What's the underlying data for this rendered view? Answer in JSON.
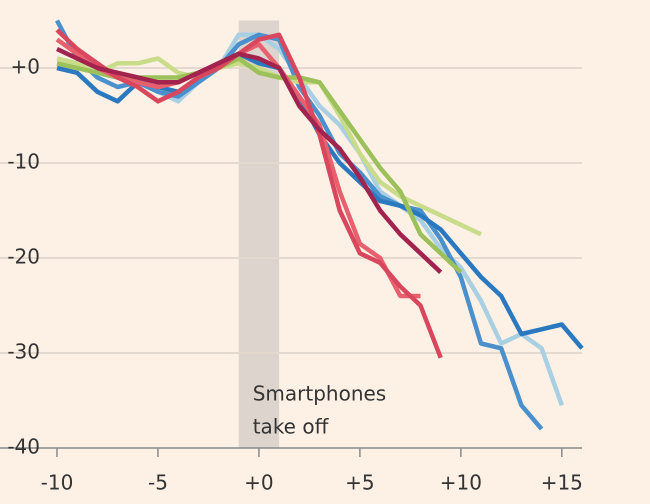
{
  "chart_data": {
    "type": "line",
    "x": [
      -10,
      -9,
      -8,
      -7,
      -6,
      -5,
      -4,
      -3,
      -2,
      -1,
      0,
      1,
      2,
      3,
      4,
      5,
      6,
      7,
      8,
      9,
      10,
      11,
      12,
      13,
      14,
      15,
      16
    ],
    "xlim": [
      -10,
      16
    ],
    "xticks": [
      -10,
      -5,
      {
        "value": 0,
        "label": "+0"
      },
      {
        "value": 5,
        "label": "+5"
      },
      {
        "value": 10,
        "label": "+10"
      },
      {
        "value": 15,
        "label": "+15"
      }
    ],
    "ylim": [
      -40,
      5
    ],
    "yticks": [
      -40,
      -30,
      -20,
      -10,
      {
        "value": 0,
        "label": "+0"
      }
    ],
    "grid": true,
    "band": {
      "from": -1,
      "to": 1,
      "color": "#ddd5cd",
      "label": [
        "Smartphones",
        "take off"
      ]
    },
    "series": [
      {
        "color": "#a9cfe2",
        "values": [
          2,
          1,
          -0.5,
          -1,
          -1,
          -2.5,
          -3.5,
          -1.5,
          0,
          3.5,
          3.5,
          2,
          -1,
          -4,
          -6,
          -9,
          -13,
          -14.5,
          -16,
          -19,
          -21,
          -24.5,
          -29,
          -28,
          -29.5,
          -35.5,
          null
        ]
      },
      {
        "color": "#4a90cc",
        "values": [
          5,
          1,
          -1,
          -2,
          -1.5,
          -2.5,
          -3,
          -1.5,
          0,
          2.5,
          3.5,
          3,
          -2,
          -5,
          -9,
          -11,
          -13.5,
          -14.5,
          -15,
          -18,
          -22,
          -29,
          -29.5,
          -35.5,
          -38,
          null,
          null
        ]
      },
      {
        "color": "#2a78bf",
        "values": [
          0,
          -0.5,
          -2.5,
          -3.5,
          -1.5,
          -2,
          -2.5,
          -1,
          0.5,
          1.5,
          0.5,
          0,
          -3,
          -7,
          -10,
          -12,
          -14,
          -14.5,
          -15.5,
          -17,
          -19.5,
          -22,
          -24,
          -28,
          -27.5,
          -27,
          -29.5
        ]
      },
      {
        "color": "#c8dc8a",
        "values": [
          1,
          0.5,
          -0.5,
          0.5,
          0.5,
          1,
          -0.5,
          -1,
          0,
          0.5,
          0,
          -1,
          -1.5,
          -1.5,
          -5,
          -9,
          -12,
          -13.5,
          -14.5,
          -15.5,
          -16.5,
          -17.5,
          null,
          null,
          null,
          null,
          null
        ]
      },
      {
        "color": "#9cc05a",
        "values": [
          0.5,
          0,
          -0.5,
          -1,
          -1,
          -1,
          -1,
          -0.5,
          0,
          1,
          -0.5,
          -1,
          -1,
          -1.5,
          -4.5,
          -7.5,
          -10.5,
          -13,
          -17.5,
          -19.5,
          -21.5,
          null,
          null,
          null,
          null,
          null,
          null
        ]
      },
      {
        "color": "#e8606e",
        "values": [
          3,
          1.5,
          0,
          -1,
          -1.5,
          -2,
          -1.5,
          -0.5,
          0.5,
          1.5,
          2.5,
          0,
          -3,
          -6,
          -13,
          -18.5,
          -20,
          -24,
          -24,
          null,
          null,
          null,
          null,
          null,
          null,
          null,
          null
        ]
      },
      {
        "color": "#d9475f",
        "values": [
          4,
          2,
          0.5,
          -1,
          -2,
          -3.5,
          -2.5,
          -1,
          0,
          1.5,
          3,
          3.5,
          -1,
          -7,
          -15,
          -19.5,
          -20.5,
          -23,
          -25,
          -30.5,
          null,
          null,
          null,
          null,
          null,
          null,
          null
        ]
      },
      {
        "color": "#a3234f",
        "values": [
          2,
          1,
          0,
          -0.5,
          -1,
          -1.5,
          -1.5,
          -0.5,
          0.5,
          1.5,
          1,
          0,
          -4,
          -6.5,
          -8.5,
          -11.5,
          -15,
          -17.5,
          -19.5,
          -21.5,
          null,
          null,
          null,
          null,
          null,
          null,
          null
        ]
      }
    ]
  }
}
